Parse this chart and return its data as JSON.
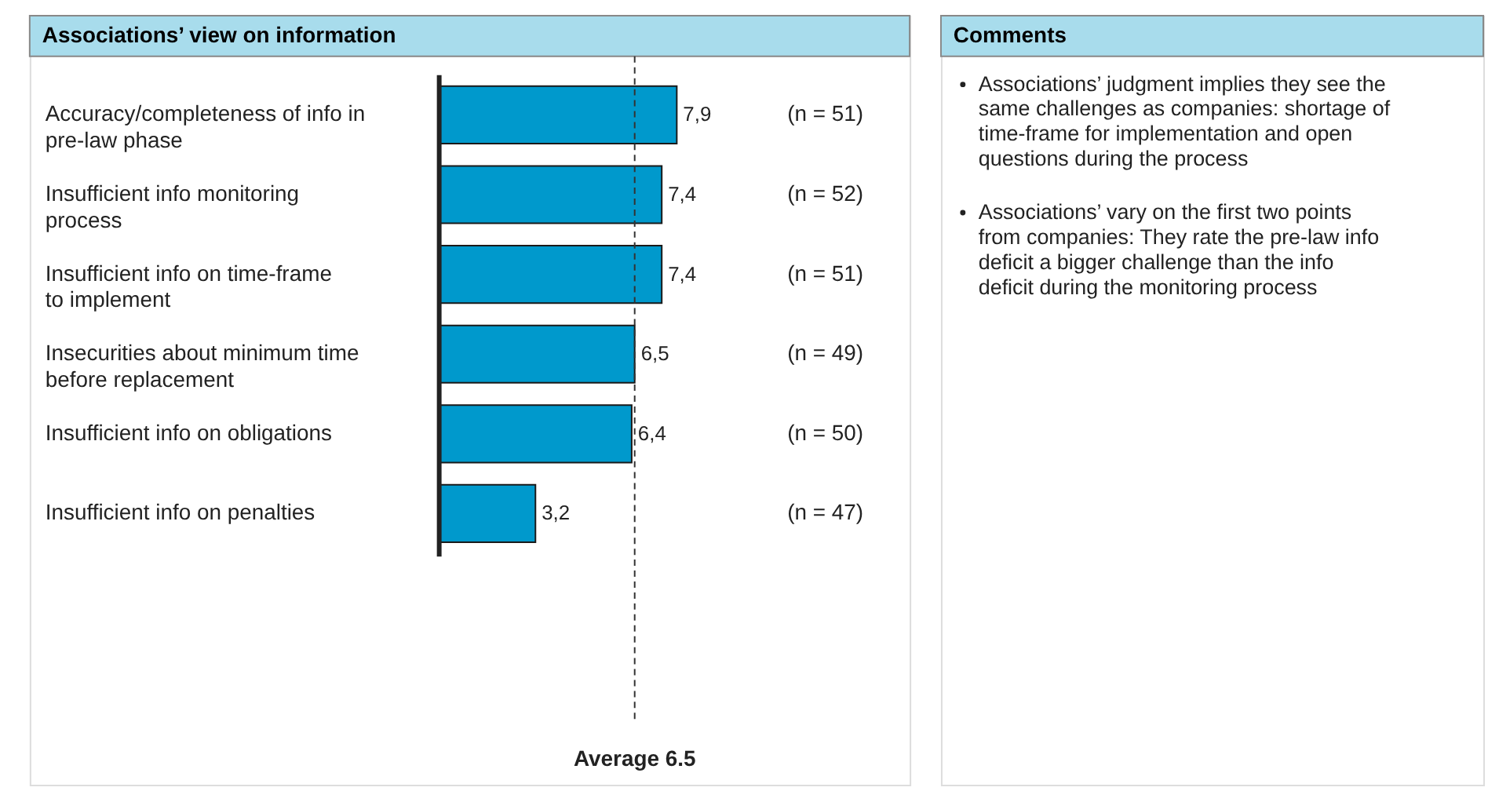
{
  "chart_data": [
    {
      "type": "bar",
      "orientation": "horizontal",
      "title": "Associations’ view on information",
      "categories": [
        "Accuracy/completeness of info in pre-law phase",
        "Insufficient info monitoring process",
        "Insufficient info on time-frame to implement",
        "Insecurities about minimum time before replacement",
        "Insufficient info on obligations",
        "Insufficient info on penalties"
      ],
      "values": [
        7.9,
        7.4,
        7.4,
        6.5,
        6.4,
        3.2
      ],
      "value_labels": [
        "7,9",
        "7,4",
        "7,4",
        "6,5",
        "6,4",
        "3,2"
      ],
      "color": "#0099cc",
      "ref_lines": [
        {
          "axis": "x",
          "value": 6.5,
          "label": "Average 6.5",
          "color": "#333333",
          "line_style": "dashed"
        }
      ],
      "annotations": [
        "(n = 51)",
        "(n = 52)",
        "(n = 51)",
        "(n = 49)",
        "(n = 50)",
        "(n = 47)"
      ]
    },
    {
      "type": "other",
      "title": "Comments",
      "annotations": [
        "Associations’ judgment implies they see the same challenges as companies: shortage of time-frame for implementation and open questions during the process",
        "Associations’ vary on the first two points from companies: They rate the pre-law info deficit a bigger challenge than the info deficit during the monitoring process"
      ]
    }
  ]
}
